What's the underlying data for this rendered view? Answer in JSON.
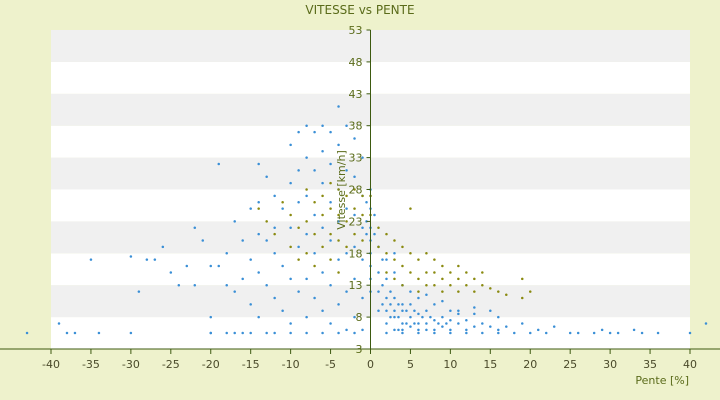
{
  "colors": {
    "background": "#eef2cc",
    "plot_band_light": "#ffffff",
    "plot_band_dark": "#f0f0f0",
    "series_blue": "#3a8fd6",
    "series_olive": "#8a8a10",
    "axis": "#3d5a10"
  },
  "chart_data": {
    "type": "scatter",
    "title": "VITESSE vs PENTE",
    "xlabel": "Pente [%]",
    "ylabel": "Vitesse [km/h]",
    "xlim": [
      -40,
      40
    ],
    "ylim": [
      3,
      53
    ],
    "x_ticks": [
      "-40",
      "-35",
      "-30",
      "-25",
      "-20",
      "-15",
      "-10",
      "-5",
      "0",
      "5",
      "10",
      "15",
      "20",
      "25",
      "30",
      "35",
      "40"
    ],
    "y_ticks": [
      "3",
      "8",
      "13",
      "18",
      "23",
      "28",
      "33",
      "38",
      "43",
      "48",
      "53"
    ],
    "grid": "horizontal alternating bands",
    "legend": "none",
    "series": [
      {
        "color": "#3a8fd6",
        "marker": "small dot",
        "points": [
          [
            -43,
            5.5
          ],
          [
            -39,
            7
          ],
          [
            -38,
            5.5
          ],
          [
            -37,
            5.5
          ],
          [
            -34,
            5.5
          ],
          [
            -30,
            5.5
          ],
          [
            -35,
            17
          ],
          [
            -30,
            17.5
          ],
          [
            -29,
            12
          ],
          [
            -28,
            17
          ],
          [
            -27,
            17
          ],
          [
            -26,
            19
          ],
          [
            -25,
            15
          ],
          [
            -24,
            13
          ],
          [
            -23,
            16
          ],
          [
            -22,
            22
          ],
          [
            -22,
            13
          ],
          [
            -21,
            20
          ],
          [
            -20,
            16
          ],
          [
            -20,
            8
          ],
          [
            -20,
            5.5
          ],
          [
            -19,
            16
          ],
          [
            -19,
            32
          ],
          [
            -18,
            18
          ],
          [
            -18,
            13
          ],
          [
            -18,
            5.5
          ],
          [
            -17,
            23
          ],
          [
            -17,
            12
          ],
          [
            -16,
            20
          ],
          [
            -16,
            14
          ],
          [
            -16,
            5.5
          ],
          [
            -15,
            25
          ],
          [
            -15,
            17
          ],
          [
            -15,
            10
          ],
          [
            -14,
            32
          ],
          [
            -14,
            26
          ],
          [
            -14,
            21
          ],
          [
            -14,
            15
          ],
          [
            -14,
            8
          ],
          [
            -13,
            30
          ],
          [
            -13,
            20
          ],
          [
            -13,
            13
          ],
          [
            -13,
            5.5
          ],
          [
            -12,
            27
          ],
          [
            -12,
            22
          ],
          [
            -12,
            18
          ],
          [
            -12,
            11
          ],
          [
            -11,
            25
          ],
          [
            -11,
            16
          ],
          [
            -11,
            9
          ],
          [
            -10,
            35
          ],
          [
            -10,
            29
          ],
          [
            -10,
            22
          ],
          [
            -10,
            14
          ],
          [
            -10,
            7
          ],
          [
            -9,
            37
          ],
          [
            -9,
            31
          ],
          [
            -9,
            26
          ],
          [
            -9,
            19
          ],
          [
            -9,
            12
          ],
          [
            -8,
            38
          ],
          [
            -8,
            33
          ],
          [
            -8,
            27
          ],
          [
            -8,
            21
          ],
          [
            -8,
            14
          ],
          [
            -8,
            8
          ],
          [
            -7,
            37
          ],
          [
            -7,
            31
          ],
          [
            -7,
            24
          ],
          [
            -7,
            18
          ],
          [
            -7,
            11
          ],
          [
            -6,
            38
          ],
          [
            -6,
            34
          ],
          [
            -6,
            29
          ],
          [
            -6,
            22
          ],
          [
            -6,
            15
          ],
          [
            -6,
            9
          ],
          [
            -5,
            37
          ],
          [
            -5,
            32
          ],
          [
            -5,
            26
          ],
          [
            -5,
            20
          ],
          [
            -5,
            13
          ],
          [
            -5,
            7
          ],
          [
            -4,
            41
          ],
          [
            -4,
            35
          ],
          [
            -4,
            28
          ],
          [
            -4,
            23
          ],
          [
            -4,
            17
          ],
          [
            -4,
            10
          ],
          [
            -3,
            38
          ],
          [
            -3,
            31
          ],
          [
            -3,
            25
          ],
          [
            -3,
            18
          ],
          [
            -3,
            12
          ],
          [
            -3,
            6
          ],
          [
            -2,
            36
          ],
          [
            -2,
            30
          ],
          [
            -2,
            24
          ],
          [
            -2,
            19
          ],
          [
            -2,
            14
          ],
          [
            -2,
            8
          ],
          [
            -1,
            33
          ],
          [
            -1,
            27
          ],
          [
            -1,
            22
          ],
          [
            -1,
            17
          ],
          [
            -1,
            11
          ],
          [
            -1,
            6
          ],
          [
            0,
            28
          ],
          [
            0,
            25
          ],
          [
            0,
            22
          ],
          [
            0,
            20
          ],
          [
            0,
            18
          ],
          [
            0,
            16
          ],
          [
            0,
            14
          ],
          [
            0,
            12
          ],
          [
            -0.5,
            26
          ],
          [
            -0.5,
            23
          ],
          [
            -0.5,
            21
          ],
          [
            0.5,
            24
          ],
          [
            0.5,
            21
          ],
          [
            1,
            19
          ],
          [
            1,
            15
          ],
          [
            1,
            12
          ],
          [
            1,
            9
          ],
          [
            1.5,
            17
          ],
          [
            1.5,
            13
          ],
          [
            1.5,
            10
          ],
          [
            2,
            14
          ],
          [
            2,
            11
          ],
          [
            2,
            9
          ],
          [
            2,
            7
          ],
          [
            2.5,
            12
          ],
          [
            2.5,
            10
          ],
          [
            2.5,
            8
          ],
          [
            3,
            11
          ],
          [
            3,
            9
          ],
          [
            3,
            8
          ],
          [
            3,
            6
          ],
          [
            3.5,
            10
          ],
          [
            3.5,
            8
          ],
          [
            3.5,
            6
          ],
          [
            4,
            10
          ],
          [
            4,
            9
          ],
          [
            4,
            7
          ],
          [
            4,
            6
          ],
          [
            4.5,
            9
          ],
          [
            4.5,
            7
          ],
          [
            5,
            10
          ],
          [
            5,
            8
          ],
          [
            5,
            6.5
          ],
          [
            5.5,
            9
          ],
          [
            5.5,
            7
          ],
          [
            6,
            8.5
          ],
          [
            6,
            7
          ],
          [
            6,
            6
          ],
          [
            6.5,
            8
          ],
          [
            7,
            9
          ],
          [
            7,
            7
          ],
          [
            7,
            6
          ],
          [
            7.5,
            8
          ],
          [
            8,
            7.5
          ],
          [
            8,
            6
          ],
          [
            8.5,
            7
          ],
          [
            9,
            8
          ],
          [
            9,
            6.5
          ],
          [
            9.5,
            7
          ],
          [
            10,
            7.5
          ],
          [
            10,
            6
          ],
          [
            11,
            7
          ],
          [
            11,
            9
          ],
          [
            12,
            7.5
          ],
          [
            12,
            6
          ],
          [
            13,
            6.5
          ],
          [
            13,
            8.5
          ],
          [
            14,
            7
          ],
          [
            15,
            6.5
          ],
          [
            16,
            6
          ],
          [
            16,
            8
          ],
          [
            17,
            6.5
          ],
          [
            18,
            5.5
          ],
          [
            19,
            7
          ],
          [
            20,
            5.5
          ],
          [
            21,
            6
          ],
          [
            22,
            5.5
          ],
          [
            23,
            6.5
          ],
          [
            25,
            5.5
          ],
          [
            26,
            5.5
          ],
          [
            28,
            5.5
          ],
          [
            29,
            6
          ],
          [
            30,
            5.5
          ],
          [
            31,
            5.5
          ],
          [
            33,
            6
          ],
          [
            34,
            5.5
          ],
          [
            36,
            5.5
          ],
          [
            40,
            5.5
          ],
          [
            42,
            7
          ],
          [
            -20,
            5.5
          ],
          [
            -17,
            5.5
          ],
          [
            -15,
            5.5
          ],
          [
            -12,
            5.5
          ],
          [
            -10,
            5.5
          ],
          [
            -8,
            5.5
          ],
          [
            -6,
            5.5
          ],
          [
            -4,
            5.5
          ],
          [
            -2,
            5.5
          ],
          [
            2,
            5.5
          ],
          [
            4,
            5.5
          ],
          [
            6,
            5.5
          ],
          [
            8,
            5.5
          ],
          [
            10,
            5.5
          ],
          [
            12,
            5.5
          ],
          [
            14,
            5.5
          ],
          [
            16,
            5.5
          ],
          [
            3,
            15
          ],
          [
            4,
            13
          ],
          [
            5,
            12
          ],
          [
            2,
            17
          ],
          [
            3,
            18
          ],
          [
            6,
            11
          ],
          [
            7,
            11.5
          ],
          [
            8,
            10
          ],
          [
            9,
            10.5
          ],
          [
            10,
            9
          ],
          [
            11,
            8.5
          ],
          [
            13,
            9.5
          ],
          [
            15,
            9
          ]
        ]
      },
      {
        "color": "#8a8a10",
        "marker": "small dot",
        "points": [
          [
            -14,
            25
          ],
          [
            -13,
            23
          ],
          [
            -12,
            21
          ],
          [
            -11,
            26
          ],
          [
            -10,
            24
          ],
          [
            -10,
            19
          ],
          [
            -9,
            22
          ],
          [
            -9,
            17
          ],
          [
            -8,
            28
          ],
          [
            -8,
            23
          ],
          [
            -8,
            18
          ],
          [
            -7,
            26
          ],
          [
            -7,
            21
          ],
          [
            -7,
            16
          ],
          [
            -6,
            27
          ],
          [
            -6,
            24
          ],
          [
            -6,
            19
          ],
          [
            -5,
            29
          ],
          [
            -5,
            25
          ],
          [
            -5,
            21
          ],
          [
            -5,
            17
          ],
          [
            -4,
            28
          ],
          [
            -4,
            24
          ],
          [
            -4,
            20
          ],
          [
            -4,
            15
          ],
          [
            -3,
            27
          ],
          [
            -3,
            23
          ],
          [
            -3,
            19
          ],
          [
            -2,
            28
          ],
          [
            -2,
            25
          ],
          [
            -2,
            21
          ],
          [
            -1,
            27
          ],
          [
            -1,
            24
          ],
          [
            -1,
            20
          ],
          [
            0,
            27
          ],
          [
            0,
            24
          ],
          [
            1,
            22
          ],
          [
            1,
            19
          ],
          [
            2,
            21
          ],
          [
            2,
            18
          ],
          [
            2,
            15
          ],
          [
            3,
            20
          ],
          [
            3,
            17
          ],
          [
            3,
            14
          ],
          [
            4,
            19
          ],
          [
            4,
            16
          ],
          [
            4,
            13
          ],
          [
            5,
            25
          ],
          [
            5,
            18
          ],
          [
            5,
            15
          ],
          [
            6,
            17
          ],
          [
            6,
            14
          ],
          [
            6,
            12
          ],
          [
            7,
            18
          ],
          [
            7,
            15
          ],
          [
            7,
            13
          ],
          [
            8,
            17
          ],
          [
            8,
            15
          ],
          [
            8,
            13
          ],
          [
            9,
            16
          ],
          [
            9,
            14
          ],
          [
            9,
            12
          ],
          [
            10,
            15
          ],
          [
            10,
            13
          ],
          [
            11,
            16
          ],
          [
            11,
            14
          ],
          [
            11,
            12
          ],
          [
            12,
            15
          ],
          [
            12,
            13
          ],
          [
            13,
            14
          ],
          [
            13,
            12
          ],
          [
            14,
            13
          ],
          [
            14,
            15
          ],
          [
            15,
            12.5
          ],
          [
            16,
            12
          ],
          [
            17,
            11.5
          ],
          [
            19,
            14
          ],
          [
            19,
            11
          ],
          [
            20,
            12
          ]
        ]
      }
    ]
  }
}
